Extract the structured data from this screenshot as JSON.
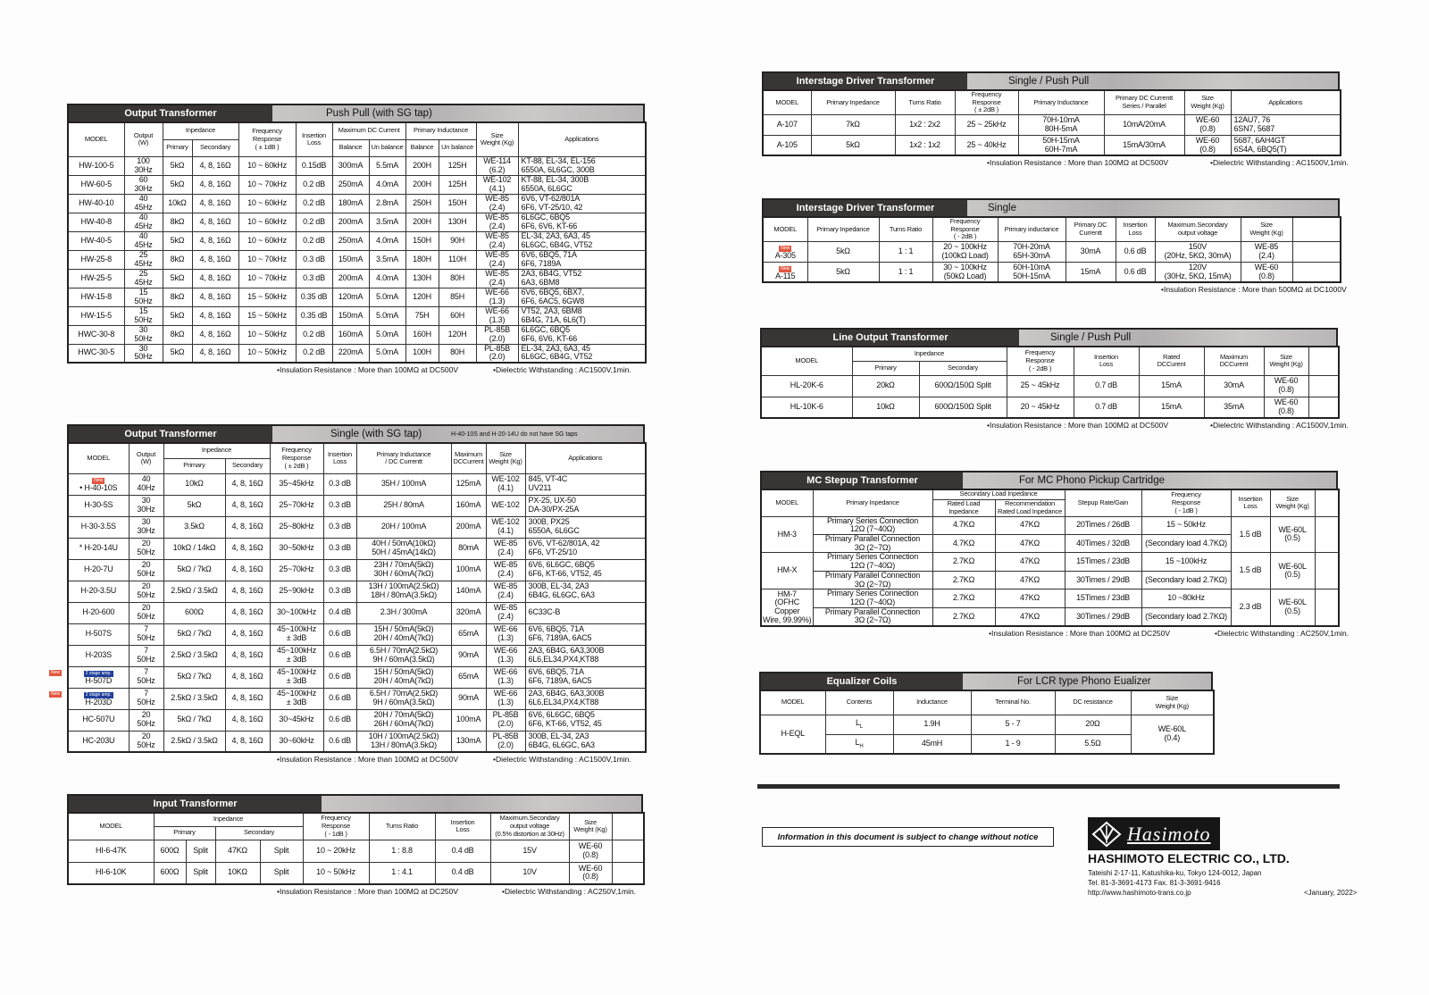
{
  "notes": {
    "ins_100_dc500": "•Insulation Resistance : More than 100MΩ at DC500V",
    "ins_500_dc1000": "•Insulation Resistance : More than 500MΩ at DC1000V",
    "ins_100_dc250": "•Insulation Resistance : More than 100MΩ at DC250V",
    "diel_1500": "•Dielectric Withstanding : AC1500V,1min.",
    "diel_250": "•Dielectric Withstanding : AC250V,1min."
  },
  "tables": {
    "pushpull": {
      "title": "Output Transformer",
      "subtitle": "Push Pull (with SG tap)",
      "headers": [
        [
          "MODEL",
          "Output\n(W)",
          "Inpedance",
          "Frequency\nResponse\n( ± 1dB )",
          "Insertion\nLoss",
          "Maximum DC Current",
          "Primary Inductance",
          "Size\nWeight (Kg)",
          "Applications"
        ],
        [
          "Primary",
          "Secondary",
          "Balance",
          "Un balance",
          "Balance",
          "Un balance"
        ]
      ],
      "rows": [
        [
          "HW-100-5",
          "100\n30Hz",
          "5kΩ",
          "4, 8, 16Ω",
          "10 ~ 60kHz",
          "0.15dB",
          "300mA",
          "5.5mA",
          "200H",
          "125H",
          "WE-114\n(6.2)",
          "KT-88, EL-34, EL-156\n6550A, 6L6GC, 300B"
        ],
        [
          "HW-60-5",
          "60\n30Hz",
          "5kΩ",
          "4, 8, 16Ω",
          "10 ~ 70kHz",
          "0.2 dB",
          "250mA",
          "4.0mA",
          "200H",
          "125H",
          "WE-102\n(4.1)",
          "KT-88, EL-34, 300B\n6550A, 6L6GC"
        ],
        [
          "HW-40-10",
          "40\n45Hz",
          "10kΩ",
          "4, 8, 16Ω",
          "10 ~ 60kHz",
          "0.2 dB",
          "180mA",
          "2.8mA",
          "250H",
          "150H",
          "WE-85\n(2.4)",
          "6V6, VT-62/801A\n6F6, VT-25/10, 42"
        ],
        [
          "HW-40-8",
          "40\n45Hz",
          "8kΩ",
          "4, 8, 16Ω",
          "10 ~ 60kHz",
          "0.2 dB",
          "200mA",
          "3.5mA",
          "200H",
          "130H",
          "WE-85\n(2.4)",
          "6L6GC, 6BQ5\n6F6, 6V6, KT-66"
        ],
        [
          "HW-40-5",
          "40\n45Hz",
          "5kΩ",
          "4, 8, 16Ω",
          "10 ~ 60kHz",
          "0.2 dB",
          "250mA",
          "4.0mA",
          "150H",
          "90H",
          "WE-85\n(2.4)",
          "EL-34, 2A3, 6A3, 45\n6L6GC, 6B4G, VT52"
        ],
        [
          "HW-25-8",
          "25\n45Hz",
          "8kΩ",
          "4, 8, 16Ω",
          "10 ~ 70kHz",
          "0.3 dB",
          "150mA",
          "3.5mA",
          "180H",
          "110H",
          "WE-85\n(2.4)",
          "6V6, 6BQ5, 71A\n6F6, 7189A"
        ],
        [
          "HW-25-5",
          "25\n45Hz",
          "5kΩ",
          "4, 8, 16Ω",
          "10 ~ 70kHz",
          "0.3 dB",
          "200mA",
          "4.0mA",
          "130H",
          "80H",
          "WE-85\n(2.4)",
          "2A3, 6B4G, VT52\n6A3, 6BM8"
        ],
        [
          "HW-15-8",
          "15\n50Hz",
          "8kΩ",
          "4, 8, 16Ω",
          "15 ~ 50kHz",
          "0.35 dB",
          "120mA",
          "5.0mA",
          "120H",
          "85H",
          "WE-66\n(1.3)",
          "6V6, 6BQ5, 6BX7,\n6F6, 6AC5, 6GW8"
        ],
        [
          "HW-15-5",
          "15\n50Hz",
          "5kΩ",
          "4, 8, 16Ω",
          "15 ~ 50kHz",
          "0.35 dB",
          "150mA",
          "5.0mA",
          "75H",
          "60H",
          "WE-66\n(1.3)",
          "VT52, 2A3, 6BM8\n6B4G, 71A, 6L6(T)"
        ],
        [
          "HWC-30-8",
          "30\n50Hz",
          "8kΩ",
          "4, 8, 16Ω",
          "10 ~ 50kHz",
          "0.2 dB",
          "160mA",
          "5.0mA",
          "160H",
          "120H",
          "PL-85B\n(2.0)",
          "6L6GC, 6BQ5\n6F6, 6V6, KT-66"
        ],
        [
          "HWC-30-5",
          "30\n50Hz",
          "5kΩ",
          "4, 8, 16Ω",
          "10 ~ 50kHz",
          "0.2 dB",
          "220mA",
          "5.0mA",
          "100H",
          "80H",
          "PL-85B\n(2.0)",
          "EL-34, 2A3, 6A3, 45\n6L6GC, 6B4G, VT52"
        ]
      ]
    },
    "single": {
      "title": "Output Transformer",
      "subtitle": "Single (with SG tap)",
      "note": "H-40-10S and H-20-14U do not have SG taps",
      "headers": [
        [
          "MODEL",
          "Output\n(W)",
          "Inpedance",
          "Frequency\nResponse\n( ± 2dB )",
          "Insertion\nLoss",
          "Primary Inductance\n/ DC Currentt",
          "Maximum\nDCCurrent",
          "Size\nWeight (Kg)",
          "Applications"
        ],
        [
          "Primary",
          "Secondary"
        ]
      ],
      "rows": [
        [
          "• H-40-10S",
          "40\n40Hz",
          "10kΩ",
          "4, 8, 16Ω",
          "35~45kHz",
          "0.3 dB",
          "35H / 100mA",
          "125mA",
          "WE-102\n(4.1)",
          "845, VT-4C\nUV211"
        ],
        [
          "H-30-5S",
          "30\n30Hz",
          "5kΩ",
          "4, 8, 16Ω",
          "25~70kHz",
          "0.3 dB",
          "25H / 80mA",
          "160mA",
          "WE-102",
          "PX-25, UX-50\nDA-30/PX-25A"
        ],
        [
          "H-30-3.5S",
          "30\n30Hz",
          "3.5kΩ",
          "4, 8, 16Ω",
          "25~80kHz",
          "0.3 dB",
          "20H / 100mA",
          "200mA",
          "WE-102\n(4.1)",
          "300B, PX25\n6550A, 6L6GC"
        ],
        [
          "* H-20-14U",
          "20\n50Hz",
          "10kΩ / 14kΩ",
          "4, 8, 16Ω",
          "30~50kHz",
          "0.3 dB",
          "40H / 50mA(10kΩ)\n50H / 45mA(14kΩ)",
          "80mA",
          "WE-85\n(2.4)",
          "6V6, VT-62/801A, 42\n6F6, VT-25/10"
        ],
        [
          "H-20-7U",
          "20\n50Hz",
          "5kΩ / 7kΩ",
          "4, 8, 16Ω",
          "25~70kHz",
          "0.3 dB",
          "23H / 70mA(5kΩ)\n30H / 60mA(7kΩ)",
          "100mA",
          "WE-85\n(2.4)",
          "6V6, 6L6GC, 6BQ5\n6F6, KT-66, VT52, 45"
        ],
        [
          "H-20-3.5U",
          "20\n50Hz",
          "2.5kΩ / 3.5kΩ",
          "4, 8, 16Ω",
          "25~90kHz",
          "0.3 dB",
          "13H / 100mA(2.5kΩ)\n18H / 80mA(3.5kΩ)",
          "140mA",
          "WE-85\n(2.4)",
          "300B, EL-34, 2A3\n6B4G, 6L6GC, 6A3"
        ],
        [
          "H-20-600",
          "20\n50Hz",
          "600Ω",
          "4, 8, 16Ω",
          "30~100kHz",
          "0.4 dB",
          "2.3H / 300mA",
          "320mA",
          "WE-85\n(2.4)",
          "6C33C-B"
        ],
        [
          "H-507S",
          "7\n50Hz",
          "5kΩ / 7kΩ",
          "4, 8, 16Ω",
          "45~100kHz\n± 3dB",
          "0.6 dB",
          "15H / 50mA(5kΩ)\n20H / 40mA(7kΩ)",
          "65mA",
          "WE-66\n(1.3)",
          "6V6, 6BQ5, 71A\n6F6, 7189A, 6AC5"
        ],
        [
          "H-203S",
          "7\n50Hz",
          "2.5kΩ / 3.5kΩ",
          "4, 8, 16Ω",
          "45~100kHz\n± 3dB",
          "0.6 dB",
          "6.5H / 70mA(2.5kΩ)\n9H / 60mA(3.5kΩ)",
          "90mA",
          "WE-66\n(1.3)",
          "2A3, 6B4G, 6A3,300B\n6L6,EL34,PX4,KT88"
        ],
        [
          "H-507D",
          "7\n50Hz",
          "5kΩ / 7kΩ",
          "4, 8, 16Ω",
          "45~100kHz\n± 3dB",
          "0.6 dB",
          "15H / 50mA(5kΩ)\n20H / 40mA(7kΩ)",
          "65mA",
          "WE-66\n(1.3)",
          "6V6, 6BQ5, 71A\n6F6, 7189A, 6AC5"
        ],
        [
          "H-203D",
          "7\n50Hz",
          "2.5kΩ / 3.5kΩ",
          "4, 8, 16Ω",
          "45~100kHz\n± 3dB",
          "0.6 dB",
          "6.5H / 70mA(2.5kΩ)\n9H / 60mA(3.5kΩ)",
          "90mA",
          "WE-66\n(1.3)",
          "2A3, 6B4G, 6A3,300B\n6L6,EL34,PX4,KT88"
        ],
        [
          "HC-507U",
          "20\n50Hz",
          "5kΩ / 7kΩ",
          "4, 8, 16Ω",
          "30~45kHz",
          "0.6 dB",
          "20H / 70mA(5kΩ)\n26H / 60mA(7kΩ)",
          "100mA",
          "PL-85B\n(2.0)",
          "6V6, 6L6GC, 6BQ5\n6F6, KT-66, VT52, 45"
        ],
        [
          "HC-203U",
          "20\n50Hz",
          "2.5kΩ / 3.5kΩ",
          "4, 8, 16Ω",
          "30~60kHz",
          "0.6 dB",
          "10H / 100mA(2.5kΩ)\n13H / 80mA(3.5kΩ)",
          "130mA",
          "PL-85B\n(2.0)",
          "300B, EL-34, 2A3\n6B4G, 6L6GC, 6A3"
        ]
      ],
      "badges": {
        "new": "New",
        "two_stage": "2 stage amp."
      }
    },
    "input": {
      "title": "Input Transformer",
      "subtitle": "",
      "headers": [
        [
          "MODEL",
          "Inpedance",
          "Frequency\nResponse\n( - 1dB )",
          "Turns Ratio",
          "Insertion\nLoss",
          "Maximum.Secondary\noutput voltage\n(0.5% distortion at 30Hz)",
          "Size\nWeight (Kg)",
          ""
        ],
        [
          "Primary",
          "Secondary"
        ]
      ],
      "rows": [
        [
          "HI-6-47K",
          "600Ω",
          "Split",
          "47KΩ",
          "Split",
          "10 ~ 20kHz",
          "1 : 8.8",
          "0.4 dB",
          "15V",
          "WE-60\n(0.8)",
          ""
        ],
        [
          "HI-6-10K",
          "600Ω",
          "Split",
          "10KΩ",
          "Split",
          "10 ~ 50kHz",
          "1 : 4.1",
          "0.4 dB",
          "10V",
          "WE-60\n(0.8)",
          ""
        ]
      ]
    },
    "driver_pp": {
      "title": "Interstage Driver  Transformer",
      "subtitle": "Single / Push Pull",
      "headers": [
        [
          "MODEL",
          "Primary Inpedance",
          "Turns Ratio",
          "Frequency\nResponse\n( ± 2dB )",
          "Primary Inductance",
          "Primary DC Currentt\nSeries / Parallel",
          "Size\nWeight (Kg)",
          "Applications"
        ]
      ],
      "rows": [
        [
          "A-107",
          "7kΩ",
          "1x2 : 2x2",
          "25 ~ 25kHz",
          "70H-10mA\n80H-5mA",
          "10mA/20mA",
          "WE-60\n(0.8)",
          "12AU7, 76\n6SN7, 5687"
        ],
        [
          "A-105",
          "5kΩ",
          "1x2 : 1x2",
          "25 ~ 40kHz",
          "50H-15mA\n60H-7mA",
          "15mA/30mA",
          "WE-60\n(0.8)",
          "5687, 6AH4GT\n6S4A, 6BQ5(T)"
        ]
      ]
    },
    "driver_single": {
      "title": "Interstage Driver  Transformer",
      "subtitle": "Single",
      "headers": [
        [
          "MODEL",
          "Primary Inpedance",
          "Turns Ratio",
          "Frequency\nResponse\n( - 2dB )",
          "Primary inductance",
          "Primary DC\nCurrentt",
          "Insertion\nLoss",
          "Maximum.Secondary\noutput voltage",
          "Size\nWeight (Kg)",
          ""
        ]
      ],
      "rows": [
        [
          "A-305",
          "5kΩ",
          "1 : 1",
          "20 ~ 100kHz\n(100kΩ Load)",
          "70H-20mA\n65H-30mA",
          "30mA",
          "0.6 dB",
          "150V\n(20Hz, 5KΩ, 30mA)",
          "WE-85\n(2.4)",
          ""
        ],
        [
          "A-115",
          "5kΩ",
          "1 : 1",
          "30 ~ 100kHz\n(50kΩ Load)",
          "60H-10mA\n50H-15mA",
          "15mA",
          "0.6 dB",
          "120V\n(30Hz, 5KΩ, 15mA)",
          "WE-60\n(0.8)",
          ""
        ]
      ],
      "badges": {
        "new": "New"
      }
    },
    "line_out": {
      "title": "Line Output Transformer",
      "subtitle": "Single / Push Pull",
      "headers": [
        [
          "MODEL",
          "Inpedance",
          "Frequency\nResponse\n( - 2dB )",
          "Insertion\nLoss",
          "Rated\nDCCurent",
          "Maximum\nDCCurent",
          "Size\nWeight (Kg)",
          ""
        ],
        [
          "Primary",
          "Secondary"
        ]
      ],
      "rows": [
        [
          "HL-20K-6",
          "20kΩ",
          "600Ω/150Ω    Split",
          "25 ~ 45kHz",
          "0.7 dB",
          "15mA",
          "30mA",
          "WE-60\n(0.8)",
          ""
        ],
        [
          "HL-10K-6",
          "10kΩ",
          "600Ω/150Ω    Split",
          "20 ~ 45kHz",
          "0.7 dB",
          "15mA",
          "35mA",
          "WE-60\n(0.8)",
          ""
        ]
      ]
    },
    "mc": {
      "title": "MC Stepup Transformer",
      "subtitle": "For MC Phono Pickup Cartridge",
      "headers": [
        [
          "MODEL",
          "Primary Inpedance",
          "Secondary Load Inpedance",
          "Stepup Rate/Gain",
          "Frequency\nResponse\n( - 1dB )",
          "Insertion\nLoss",
          "Size\nWeight (Kg)",
          ""
        ],
        [
          "Rated Load Inpedance",
          "Recommendation\nRated Load Inpedance"
        ]
      ],
      "rows": [
        [
          "HM-3",
          "Primary Series Connection\n12Ω  (7~40Ω)",
          "4.7KΩ",
          "47KΩ",
          "20Times / 26dB",
          "15 ~ 50kHz",
          "1.5 dB",
          "WE-60L\n(0.5)",
          ""
        ],
        [
          null,
          "Primary Parallel Connection\n3Ω  (2~7Ω)",
          "4.7KΩ",
          "47KΩ",
          "40Times / 32dB",
          "(Secondary load 4.7KΩ)",
          null,
          null,
          null
        ],
        [
          "HM-X",
          "Primary Series Connection\n12Ω  (7~40Ω)",
          "2.7KΩ",
          "47KΩ",
          "15Times / 23dB",
          "15 ~100kHz",
          "1.5 dB",
          "WE-60L\n(0.5)",
          ""
        ],
        [
          null,
          "Primary Parallel Connection\n3Ω  (2~7Ω)",
          "2.7KΩ",
          "47KΩ",
          "30Times / 29dB",
          "(Secondary load 2.7KΩ)",
          null,
          null,
          null
        ],
        [
          "HM-7\n(OFHC Copper\nWire, 99.99%)",
          "Primary Series Connection\n12Ω  (7~40Ω)",
          "2.7KΩ",
          "47KΩ",
          "15Times / 23dB",
          "10 ~80kHz",
          "2.3 dB",
          "WE-60L\n(0.5)",
          ""
        ],
        [
          null,
          "Primary Parallel Connection\n3Ω  (2~7Ω)",
          "2.7KΩ",
          "47KΩ",
          "30Times / 29dB",
          "(Secondary load 2.7KΩ)",
          null,
          null,
          null
        ]
      ]
    },
    "eql": {
      "title": "Equalizer  Coils",
      "subtitle": "For LCR type Phono Eualizer",
      "headers": [
        [
          "MODEL",
          "Contents",
          "Inductance",
          "Terminal No.",
          "DC resistance",
          "Size\nWeight (Kg)"
        ]
      ],
      "rows": [
        [
          "H-EQL",
          "L L",
          "1.9H",
          "5  -  7",
          "20Ω",
          "WE-60L\n(0.4)"
        ],
        [
          null,
          "L H",
          "45mH",
          "1  -  9",
          "5.5Ω",
          null
        ]
      ]
    }
  },
  "footer": {
    "notice": "Information in this document is subject to change without notice",
    "logo_text": "Hasimoto",
    "company": "HASHIMOTO ELECTRIC CO., LTD.",
    "address": "Tateishi 2-17-11, Katushika-ku, Tokyo 124-0012, Japan",
    "tel_fax": "Tel. 81-3-3691-4173    Fax. 81-3-3691-9416",
    "url": "http://www.hashimoto-trans.co.jp",
    "date": "<January, 2022>"
  }
}
